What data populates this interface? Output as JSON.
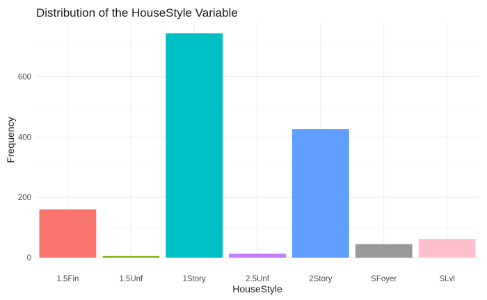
{
  "chart_data": {
    "type": "bar",
    "title": "Distribution of the HouseStyle Variable",
    "xlabel": "HouseStyle",
    "ylabel": "Frequency",
    "categories": [
      "1.5Fin",
      "1.5Unf",
      "1Story",
      "2.5Unf",
      "2Story",
      "SFoyer",
      "SLvl"
    ],
    "values": [
      160,
      5,
      744,
      13,
      426,
      45,
      62
    ],
    "colors": [
      "#F8766D",
      "#7CAE00",
      "#00BFC4",
      "#C77CFF",
      "#619CFF",
      "#999999",
      "#FFC0CB"
    ],
    "yticks": [
      0,
      200,
      400,
      600
    ],
    "ylim": [
      0,
      744
    ],
    "grid": true,
    "legend": "none"
  }
}
